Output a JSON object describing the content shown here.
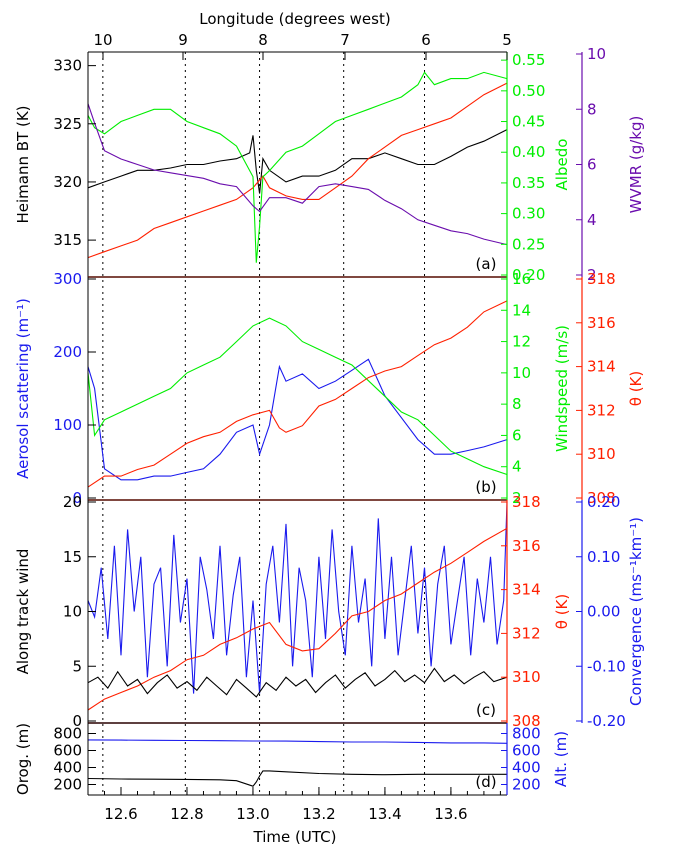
{
  "colors": {
    "black": "#000000",
    "green": "#00ee00",
    "red": "#ff2000",
    "purple": "#6a0dad",
    "blue": "#1a1aee",
    "darkred": "#7a0000"
  },
  "top_axis": {
    "label": "Longitude (degrees west)",
    "ticks": [
      "10",
      "9",
      "8",
      "7",
      "6",
      "5"
    ]
  },
  "bottom_axis": {
    "label": "Time (UTC)",
    "ticks": [
      "12.6",
      "12.8",
      "13.0",
      "13.2",
      "13.4",
      "13.6"
    ]
  },
  "chart_data": [
    {
      "type": "line",
      "panel_label": "(a)",
      "x_range": [
        12.5,
        13.77
      ],
      "axes": {
        "left": {
          "label": "Heimann BT (K)",
          "range": [
            312,
            331
          ],
          "ticks": [
            "315",
            "320",
            "325",
            "330"
          ],
          "color": "#000000"
        },
        "right1": {
          "label": "Albedo",
          "range": [
            0.2,
            0.56
          ],
          "ticks": [
            "0.20",
            "0.25",
            "0.30",
            "0.35",
            "0.40",
            "0.45",
            "0.50",
            "0.55"
          ],
          "color": "#00ee00"
        },
        "right2": {
          "label": "WVMR (g/kg)",
          "range": [
            2,
            10
          ],
          "ticks": [
            "2",
            "4",
            "6",
            "8",
            "10"
          ],
          "color": "#6a0dad"
        }
      },
      "series": [
        {
          "axis": "left",
          "color": "#000000",
          "x": [
            12.5,
            12.55,
            12.6,
            12.65,
            12.7,
            12.75,
            12.8,
            12.85,
            12.9,
            12.95,
            12.99,
            13.0,
            13.01,
            13.02,
            13.03,
            13.05,
            13.1,
            13.15,
            13.2,
            13.25,
            13.3,
            13.35,
            13.4,
            13.45,
            13.5,
            13.55,
            13.6,
            13.65,
            13.7,
            13.77
          ],
          "y": [
            319.5,
            320,
            320.5,
            321,
            321,
            321.2,
            321.5,
            321.5,
            321.8,
            322,
            322.5,
            324,
            321,
            319,
            322,
            321,
            320,
            320.5,
            320.5,
            321,
            322,
            322,
            322.5,
            322,
            321.5,
            321.5,
            322.2,
            323,
            323.5,
            324.5
          ]
        },
        {
          "axis": "left",
          "color": "#ff2000",
          "x": [
            12.5,
            12.55,
            12.6,
            12.65,
            12.7,
            12.75,
            12.8,
            12.85,
            12.9,
            12.95,
            13.0,
            13.03,
            13.05,
            13.1,
            13.15,
            13.2,
            13.25,
            13.3,
            13.35,
            13.4,
            13.45,
            13.5,
            13.55,
            13.6,
            13.65,
            13.7,
            13.77
          ],
          "y": [
            313.5,
            314,
            314.5,
            315,
            316,
            316.5,
            317,
            317.5,
            318,
            318.5,
            319.5,
            320.5,
            319.5,
            318.8,
            318.5,
            318.5,
            319.5,
            320.5,
            322,
            323,
            324,
            324.5,
            325,
            325.5,
            326.5,
            327.5,
            328.5
          ]
        },
        {
          "axis": "right1",
          "color": "#00ee00",
          "x": [
            12.5,
            12.52,
            12.55,
            12.6,
            12.65,
            12.7,
            12.75,
            12.8,
            12.85,
            12.9,
            12.95,
            13.0,
            13.01,
            13.02,
            13.03,
            13.05,
            13.1,
            13.15,
            13.2,
            13.25,
            13.3,
            13.35,
            13.4,
            13.45,
            13.5,
            13.52,
            13.55,
            13.6,
            13.65,
            13.7,
            13.77
          ],
          "y": [
            0.46,
            0.44,
            0.43,
            0.45,
            0.46,
            0.47,
            0.47,
            0.45,
            0.44,
            0.43,
            0.41,
            0.36,
            0.22,
            0.28,
            0.36,
            0.37,
            0.4,
            0.41,
            0.43,
            0.45,
            0.46,
            0.47,
            0.48,
            0.49,
            0.51,
            0.53,
            0.51,
            0.52,
            0.52,
            0.53,
            0.52
          ]
        },
        {
          "axis": "right2",
          "color": "#6a0dad",
          "x": [
            12.5,
            12.52,
            12.55,
            12.6,
            12.65,
            12.7,
            12.75,
            12.8,
            12.85,
            12.9,
            12.95,
            13.0,
            13.02,
            13.05,
            13.1,
            13.15,
            13.2,
            13.25,
            13.3,
            13.35,
            13.4,
            13.45,
            13.5,
            13.55,
            13.6,
            13.65,
            13.7,
            13.77
          ],
          "y": [
            8.2,
            7.5,
            6.5,
            6.2,
            6,
            5.8,
            5.7,
            5.6,
            5.5,
            5.3,
            5.2,
            4.5,
            4.3,
            4.8,
            4.8,
            4.6,
            5.2,
            5.3,
            5.2,
            5.1,
            4.7,
            4.4,
            4,
            3.8,
            3.6,
            3.5,
            3.3,
            3.1
          ]
        }
      ]
    },
    {
      "type": "line",
      "panel_label": "(b)",
      "x_range": [
        12.5,
        13.77
      ],
      "axes": {
        "left": {
          "label": "Aerosol scattering (m⁻¹)",
          "range": [
            0,
            300
          ],
          "ticks": [
            "0",
            "100",
            "200",
            "300"
          ],
          "color": "#1a1aee"
        },
        "right1": {
          "label": "Windspeed (m/s)",
          "range": [
            2,
            16
          ],
          "ticks": [
            "2",
            "4",
            "6",
            "8",
            "10",
            "12",
            "14",
            "16"
          ],
          "color": "#00ee00"
        },
        "right2": {
          "label": "θ (K)",
          "range": [
            308,
            318
          ],
          "ticks": [
            "308",
            "310",
            "312",
            "314",
            "316",
            "318"
          ],
          "color": "#ff2000"
        }
      },
      "series": [
        {
          "axis": "left",
          "color": "#1a1aee",
          "x": [
            12.5,
            12.52,
            12.55,
            12.6,
            12.65,
            12.7,
            12.75,
            12.8,
            12.85,
            12.9,
            12.95,
            13.0,
            13.02,
            13.05,
            13.08,
            13.1,
            13.15,
            13.2,
            13.25,
            13.3,
            13.35,
            13.4,
            13.45,
            13.5,
            13.55,
            13.6,
            13.65,
            13.7,
            13.77
          ],
          "y": [
            180,
            150,
            40,
            25,
            25,
            30,
            30,
            35,
            40,
            60,
            90,
            100,
            60,
            100,
            180,
            160,
            170,
            150,
            160,
            175,
            190,
            140,
            110,
            80,
            60,
            60,
            65,
            70,
            80
          ]
        },
        {
          "axis": "right1",
          "color": "#00ee00",
          "x": [
            12.5,
            12.52,
            12.55,
            12.6,
            12.65,
            12.7,
            12.75,
            12.8,
            12.85,
            12.9,
            12.95,
            13.0,
            13.05,
            13.1,
            13.15,
            13.2,
            13.25,
            13.3,
            13.35,
            13.4,
            13.45,
            13.5,
            13.55,
            13.6,
            13.65,
            13.7,
            13.77
          ],
          "y": [
            10,
            6,
            7,
            7.5,
            8,
            8.5,
            9,
            10,
            10.5,
            11,
            12,
            13,
            13.5,
            13,
            12,
            11.5,
            11,
            10.5,
            9.5,
            8.5,
            7.5,
            7,
            6,
            5,
            4.5,
            4,
            3.5
          ]
        },
        {
          "axis": "right2",
          "color": "#ff2000",
          "x": [
            12.5,
            12.55,
            12.6,
            12.65,
            12.7,
            12.75,
            12.8,
            12.85,
            12.9,
            12.95,
            13.0,
            13.05,
            13.08,
            13.1,
            13.15,
            13.2,
            13.25,
            13.3,
            13.35,
            13.4,
            13.45,
            13.5,
            13.55,
            13.6,
            13.65,
            13.7,
            13.77
          ],
          "y": [
            308.5,
            309,
            309,
            309.3,
            309.5,
            310,
            310.5,
            310.8,
            311,
            311.5,
            311.8,
            312,
            311.2,
            311,
            311.3,
            312.2,
            312.5,
            313,
            313.5,
            313.8,
            314,
            314.5,
            315,
            315.3,
            315.8,
            316.5,
            317
          ]
        }
      ]
    },
    {
      "type": "line",
      "panel_label": "(c)",
      "x_range": [
        12.5,
        13.77
      ],
      "axes": {
        "left": {
          "label": "Along track wind",
          "range": [
            0,
            20
          ],
          "ticks": [
            "0",
            "5",
            "10",
            "15",
            "20"
          ],
          "color": "#000000"
        },
        "right1": {
          "label": "θ (K)",
          "range": [
            308,
            318
          ],
          "ticks": [
            "308",
            "310",
            "312",
            "314",
            "316",
            "318"
          ],
          "color": "#ff2000"
        },
        "right2": {
          "label": "Convergence (ms⁻¹km⁻¹)",
          "range": [
            -0.2,
            0.2
          ],
          "ticks": [
            "-0.20",
            "-0.10",
            "0.00",
            "0.10",
            "0.20"
          ],
          "color": "#1a1aee"
        }
      },
      "series": [
        {
          "axis": "right2",
          "color": "#1a1aee",
          "x": [
            12.5,
            12.52,
            12.54,
            12.56,
            12.58,
            12.6,
            12.62,
            12.64,
            12.66,
            12.68,
            12.7,
            12.72,
            12.74,
            12.76,
            12.78,
            12.8,
            12.82,
            12.84,
            12.86,
            12.88,
            12.9,
            12.92,
            12.94,
            12.96,
            12.98,
            13.0,
            13.02,
            13.04,
            13.06,
            13.08,
            13.1,
            13.12,
            13.14,
            13.16,
            13.18,
            13.2,
            13.22,
            13.24,
            13.26,
            13.28,
            13.3,
            13.32,
            13.34,
            13.36,
            13.38,
            13.4,
            13.42,
            13.44,
            13.46,
            13.48,
            13.5,
            13.52,
            13.54,
            13.56,
            13.58,
            13.6,
            13.62,
            13.64,
            13.66,
            13.68,
            13.7,
            13.72,
            13.74,
            13.76,
            13.77
          ],
          "y": [
            0.02,
            -0.01,
            0.08,
            -0.05,
            0.12,
            -0.08,
            0.15,
            0.0,
            0.1,
            -0.12,
            0.05,
            0.08,
            -0.1,
            0.14,
            -0.02,
            0.06,
            -0.15,
            0.1,
            0.04,
            -0.05,
            0.12,
            -0.08,
            0.03,
            0.1,
            -0.12,
            0.02,
            -0.15,
            0.05,
            0.12,
            -0.02,
            0.16,
            -0.1,
            0.08,
            0.02,
            -0.12,
            0.1,
            -0.05,
            0.15,
            0.0,
            -0.08,
            0.12,
            -0.02,
            0.06,
            -0.1,
            0.17,
            -0.05,
            0.1,
            -0.08,
            0.02,
            0.12,
            -0.04,
            0.08,
            -0.1,
            0.05,
            0.12,
            -0.06,
            0.02,
            0.1,
            -0.08,
            0.06,
            -0.02,
            0.1,
            -0.06,
            0.02,
            0.2
          ]
        },
        {
          "axis": "right1",
          "color": "#ff2000",
          "x": [
            12.5,
            12.55,
            12.6,
            12.65,
            12.7,
            12.75,
            12.8,
            12.85,
            12.9,
            12.95,
            13.0,
            13.05,
            13.1,
            13.15,
            13.2,
            13.25,
            13.3,
            13.35,
            13.4,
            13.45,
            13.5,
            13.55,
            13.6,
            13.65,
            13.7,
            13.77
          ],
          "y": [
            308.5,
            309,
            309.3,
            309.6,
            310,
            310.3,
            310.8,
            311,
            311.5,
            311.8,
            312.2,
            312.5,
            311.5,
            311.2,
            311.3,
            312,
            312.8,
            313,
            313.5,
            313.8,
            314.3,
            314.8,
            315.2,
            315.7,
            316.2,
            316.8
          ]
        },
        {
          "axis": "left",
          "color": "#000000",
          "x": [
            12.5,
            12.53,
            12.56,
            12.59,
            12.62,
            12.65,
            12.68,
            12.71,
            12.74,
            12.77,
            12.8,
            12.83,
            12.86,
            12.89,
            12.92,
            12.95,
            12.98,
            13.01,
            13.04,
            13.07,
            13.1,
            13.13,
            13.16,
            13.19,
            13.22,
            13.25,
            13.28,
            13.31,
            13.34,
            13.37,
            13.4,
            13.43,
            13.46,
            13.49,
            13.52,
            13.55,
            13.58,
            13.61,
            13.64,
            13.67,
            13.7,
            13.73,
            13.77
          ],
          "y": [
            3.5,
            4,
            3,
            4.5,
            3.2,
            3.8,
            2.5,
            3.5,
            4.2,
            3,
            3.6,
            2.8,
            4,
            3.2,
            2.4,
            3.8,
            3,
            2.2,
            3.5,
            2.8,
            4,
            3.2,
            3.8,
            2.6,
            3.5,
            4.2,
            3,
            3.8,
            4.4,
            3.2,
            3.8,
            4.6,
            3.6,
            4.2,
            3.5,
            4.8,
            3.6,
            4.2,
            3.4,
            4,
            4.5,
            3.6,
            4
          ]
        }
      ]
    },
    {
      "type": "line",
      "panel_label": "(d)",
      "x_range": [
        12.5,
        13.77
      ],
      "axes": {
        "left": {
          "label": "Orog. (m)",
          "range": [
            100,
            900
          ],
          "ticks": [
            "200",
            "400",
            "600",
            "800"
          ],
          "color": "#000000"
        },
        "right1": {
          "label": "Alt. (m)",
          "range": [
            100,
            900
          ],
          "ticks": [
            "200",
            "400",
            "600",
            "800"
          ],
          "color": "#1a1aee"
        }
      },
      "series": [
        {
          "axis": "right1",
          "color": "#1a1aee",
          "x": [
            12.5,
            12.6,
            12.7,
            12.8,
            12.9,
            13.0,
            13.1,
            13.2,
            13.3,
            13.4,
            13.5,
            13.6,
            13.7,
            13.77
          ],
          "y": [
            725,
            722,
            720,
            718,
            715,
            712,
            710,
            705,
            700,
            700,
            695,
            690,
            690,
            685
          ]
        },
        {
          "axis": "left",
          "color": "#000000",
          "x": [
            12.5,
            12.6,
            12.7,
            12.8,
            12.9,
            12.95,
            13.0,
            13.01,
            13.02,
            13.03,
            13.05,
            13.1,
            13.2,
            13.3,
            13.4,
            13.5,
            13.6,
            13.7,
            13.77
          ],
          "y": [
            270,
            265,
            262,
            260,
            255,
            245,
            180,
            230,
            300,
            360,
            360,
            350,
            330,
            320,
            315,
            320,
            320,
            320,
            320
          ]
        }
      ]
    }
  ]
}
